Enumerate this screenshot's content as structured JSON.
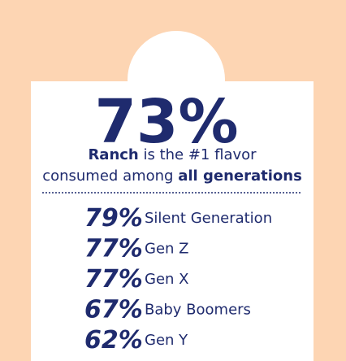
{
  "headline": {
    "value": "73%",
    "line1": {
      "bold": "Ranch",
      "rest": "is the #1 flavor"
    },
    "line2": {
      "rest": "consumed among",
      "bold": "all generations"
    }
  },
  "list": [
    {
      "percent": "79%",
      "label": "Silent Generation"
    },
    {
      "percent": "77%",
      "label": "Gen Z"
    },
    {
      "percent": "77%",
      "label": "Gen X"
    },
    {
      "percent": "67%",
      "label": "Baby Boomers"
    },
    {
      "percent": "62%",
      "label": "Gen Y"
    }
  ]
}
